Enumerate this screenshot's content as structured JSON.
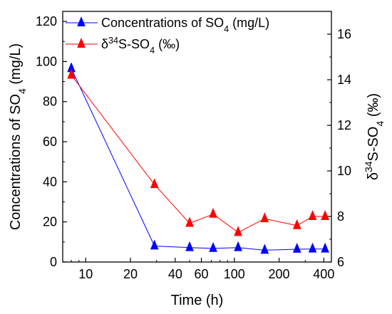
{
  "chart_data": {
    "type": "line",
    "xlabel": "Time (h)",
    "ylabel_left": {
      "main": "Concentrations of SO",
      "sub": "4",
      "tail": " (mg/L)"
    },
    "ylabel_right": {
      "prefix": "δ",
      "sup": "34",
      "main": "S-SO",
      "sub": "4",
      "tail": " (‰)"
    },
    "x_scale": "log",
    "xlim": [
      7,
      450
    ],
    "ylim_left": [
      0,
      125
    ],
    "ylim_right": [
      6,
      17
    ],
    "x_ticks": [
      10,
      20,
      40,
      60,
      100,
      200,
      400
    ],
    "x_tick_labels": [
      "10",
      "20",
      "40",
      "60",
      "100",
      "200",
      "400"
    ],
    "y_left_ticks": [
      0,
      20,
      40,
      60,
      80,
      100,
      120
    ],
    "y_left_tick_labels": [
      "0",
      "20",
      "40",
      "60",
      "80",
      "100",
      "120"
    ],
    "y_right_ticks": [
      6,
      8,
      10,
      12,
      14,
      16
    ],
    "y_right_tick_labels": [
      "6",
      "8",
      "10",
      "12",
      "14",
      "16"
    ],
    "legend_position": "top-left",
    "series": [
      {
        "name": {
          "main": "Concentrations of SO",
          "sub": "4",
          "tail": " (mg/L)"
        },
        "axis": "left",
        "color": "#0000ff",
        "marker": "triangle",
        "x": [
          8,
          29,
          50,
          72,
          106,
          160,
          264,
          336,
          408
        ],
        "y": [
          96.5,
          8,
          7.2,
          6.8,
          7.2,
          5.9,
          6.4,
          6.5,
          6.5
        ]
      },
      {
        "name": {
          "prefix": "δ",
          "sup": "34",
          "main": "S-SO",
          "sub": "4",
          "tail": " (‰)"
        },
        "axis": "right",
        "color": "#ff0000",
        "marker": "triangle",
        "x": [
          8,
          29,
          50,
          72,
          106,
          160,
          264,
          336,
          408
        ],
        "y": [
          14.2,
          9.4,
          7.7,
          8.1,
          7.3,
          7.9,
          7.6,
          8.0,
          8.0
        ]
      }
    ]
  }
}
